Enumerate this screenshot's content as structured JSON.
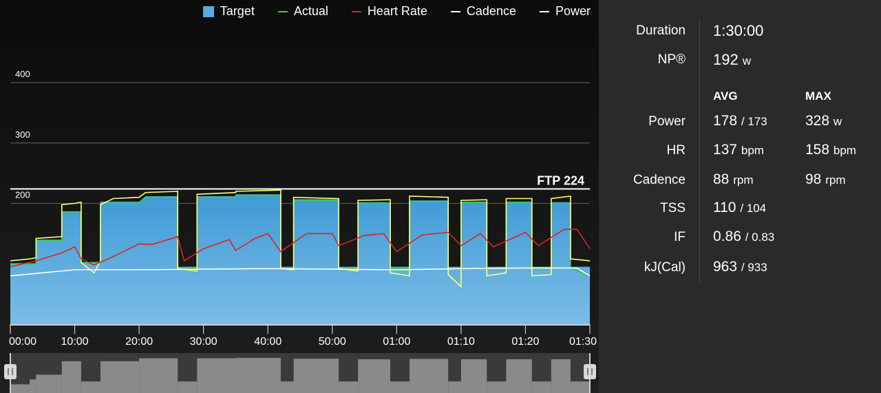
{
  "legend": [
    {
      "name": "Target",
      "color": "#5aa8dc",
      "kind": "box"
    },
    {
      "name": "Actual",
      "color": "#33cc55",
      "kind": "line"
    },
    {
      "name": "Heart Rate",
      "color": "#dd2222",
      "kind": "line"
    },
    {
      "name": "Cadence",
      "color": "#ffffff",
      "kind": "line"
    },
    {
      "name": "Power",
      "color": "#ffffff",
      "kind": "line"
    }
  ],
  "ftp_label": "FTP 224",
  "chart_data": {
    "type": "area",
    "y_ticks": [
      "400",
      "300",
      "200"
    ],
    "x_ticks": [
      "00:00",
      "10:00",
      "20:00",
      "30:00",
      "40:00",
      "50:00",
      "01:00",
      "01:10",
      "01:20",
      "01:30"
    ],
    "xlim_minutes": [
      0,
      90
    ],
    "ylim_watts": [
      0,
      400
    ],
    "ftp_watts": 224,
    "series": [
      {
        "name": "Target",
        "color": "#5aa8dc",
        "points": [
          [
            0,
            100
          ],
          [
            4,
            100
          ],
          [
            4,
            139
          ],
          [
            8,
            139
          ],
          [
            8,
            186
          ],
          [
            11,
            186
          ],
          [
            11,
            102
          ],
          [
            14,
            102
          ],
          [
            14,
            203
          ],
          [
            20,
            203
          ],
          [
            21,
            212
          ],
          [
            26,
            212
          ],
          [
            26,
            95
          ],
          [
            29,
            95
          ],
          [
            29,
            212
          ],
          [
            35,
            212
          ],
          [
            35,
            215
          ],
          [
            42,
            215
          ],
          [
            42,
            95
          ],
          [
            44,
            95
          ],
          [
            44,
            207
          ],
          [
            51,
            207
          ],
          [
            51,
            95
          ],
          [
            54,
            95
          ],
          [
            54,
            202
          ],
          [
            59,
            202
          ],
          [
            59,
            95
          ],
          [
            62,
            95
          ],
          [
            62,
            205
          ],
          [
            68,
            205
          ],
          [
            68,
            95
          ],
          [
            70,
            95
          ],
          [
            70,
            203
          ],
          [
            74,
            203
          ],
          [
            74,
            95
          ],
          [
            77,
            95
          ],
          [
            77,
            203
          ],
          [
            81,
            203
          ],
          [
            81,
            95
          ],
          [
            84,
            95
          ],
          [
            84,
            202
          ],
          [
            87,
            202
          ],
          [
            87,
            95
          ],
          [
            90,
            95
          ]
        ]
      },
      {
        "name": "Actual",
        "color": "#33cc55",
        "points": [
          [
            0,
            100
          ],
          [
            4,
            100
          ],
          [
            4,
            139
          ],
          [
            8,
            139
          ],
          [
            8,
            186
          ],
          [
            11,
            186
          ],
          [
            11,
            102
          ],
          [
            14,
            102
          ],
          [
            14,
            200
          ],
          [
            20,
            200
          ],
          [
            21,
            210
          ],
          [
            26,
            210
          ],
          [
            26,
            92
          ],
          [
            29,
            92
          ],
          [
            29,
            210
          ],
          [
            35,
            210
          ],
          [
            35,
            213
          ],
          [
            42,
            213
          ],
          [
            42,
            92
          ],
          [
            44,
            92
          ],
          [
            44,
            205
          ],
          [
            51,
            205
          ],
          [
            51,
            92
          ],
          [
            54,
            92
          ],
          [
            54,
            200
          ],
          [
            59,
            200
          ],
          [
            59,
            92
          ],
          [
            62,
            92
          ],
          [
            62,
            203
          ],
          [
            68,
            203
          ],
          [
            68,
            92
          ],
          [
            70,
            92
          ],
          [
            70,
            201
          ],
          [
            74,
            201
          ],
          [
            74,
            92
          ],
          [
            77,
            92
          ],
          [
            77,
            201
          ],
          [
            81,
            201
          ],
          [
            81,
            92
          ],
          [
            84,
            92
          ],
          [
            84,
            200
          ],
          [
            87,
            200
          ],
          [
            87,
            92
          ],
          [
            90,
            80
          ]
        ]
      },
      {
        "name": "Power",
        "color": "#ffff77",
        "points": [
          [
            0,
            105
          ],
          [
            3,
            108
          ],
          [
            4,
            110
          ],
          [
            4,
            142
          ],
          [
            8,
            145
          ],
          [
            8,
            198
          ],
          [
            10,
            200
          ],
          [
            11,
            202
          ],
          [
            11,
            102
          ],
          [
            13,
            85
          ],
          [
            14,
            105
          ],
          [
            14,
            198
          ],
          [
            16,
            208
          ],
          [
            20,
            210
          ],
          [
            21,
            218
          ],
          [
            26,
            220
          ],
          [
            26,
            92
          ],
          [
            29,
            88
          ],
          [
            29,
            215
          ],
          [
            35,
            218
          ],
          [
            35,
            220
          ],
          [
            42,
            222
          ],
          [
            42,
            92
          ],
          [
            44,
            90
          ],
          [
            44,
            210
          ],
          [
            51,
            208
          ],
          [
            51,
            92
          ],
          [
            54,
            88
          ],
          [
            54,
            205
          ],
          [
            59,
            206
          ],
          [
            59,
            85
          ],
          [
            62,
            80
          ],
          [
            62,
            212
          ],
          [
            68,
            210
          ],
          [
            68,
            82
          ],
          [
            70,
            62
          ],
          [
            70,
            205
          ],
          [
            74,
            206
          ],
          [
            74,
            80
          ],
          [
            77,
            85
          ],
          [
            77,
            208
          ],
          [
            81,
            208
          ],
          [
            81,
            80
          ],
          [
            84,
            82
          ],
          [
            84,
            208
          ],
          [
            87,
            212
          ],
          [
            87,
            108
          ],
          [
            90,
            105
          ]
        ]
      },
      {
        "name": "Heart Rate",
        "color": "#dd2222",
        "points": [
          [
            0,
            95
          ],
          [
            4,
            105
          ],
          [
            8,
            118
          ],
          [
            10,
            128
          ],
          [
            11,
            108
          ],
          [
            13,
            98
          ],
          [
            16,
            112
          ],
          [
            20,
            133
          ],
          [
            22,
            132
          ],
          [
            26,
            145
          ],
          [
            27,
            105
          ],
          [
            30,
            125
          ],
          [
            34,
            140
          ],
          [
            35,
            122
          ],
          [
            38,
            142
          ],
          [
            40,
            150
          ],
          [
            42,
            120
          ],
          [
            46,
            150
          ],
          [
            50,
            150
          ],
          [
            51,
            130
          ],
          [
            55,
            147
          ],
          [
            58,
            150
          ],
          [
            60,
            120
          ],
          [
            64,
            148
          ],
          [
            68,
            152
          ],
          [
            70,
            130
          ],
          [
            73,
            150
          ],
          [
            75,
            128
          ],
          [
            80,
            152
          ],
          [
            82,
            130
          ],
          [
            86,
            157
          ],
          [
            88,
            157
          ],
          [
            90,
            125
          ]
        ]
      },
      {
        "name": "Cadence",
        "color": "#ffffff",
        "points": [
          [
            0,
            80
          ],
          [
            10,
            90
          ],
          [
            20,
            90
          ],
          [
            30,
            91
          ],
          [
            40,
            92
          ],
          [
            50,
            91
          ],
          [
            60,
            90
          ],
          [
            70,
            92
          ],
          [
            80,
            93
          ],
          [
            88,
            93
          ],
          [
            90,
            80
          ]
        ]
      }
    ]
  },
  "overview": {
    "segments": [
      [
        0,
        3,
        45
      ],
      [
        3,
        4,
        70
      ],
      [
        4,
        8,
        95
      ],
      [
        8,
        11,
        165
      ],
      [
        11,
        14,
        60
      ],
      [
        14,
        20,
        165
      ],
      [
        20,
        26,
        180
      ],
      [
        26,
        29,
        60
      ],
      [
        29,
        35,
        180
      ],
      [
        35,
        42,
        182
      ],
      [
        42,
        44,
        60
      ],
      [
        44,
        51,
        178
      ],
      [
        51,
        54,
        60
      ],
      [
        54,
        59,
        175
      ],
      [
        59,
        62,
        60
      ],
      [
        62,
        68,
        177
      ],
      [
        68,
        70,
        60
      ],
      [
        70,
        74,
        175
      ],
      [
        74,
        77,
        60
      ],
      [
        77,
        81,
        175
      ],
      [
        81,
        84,
        60
      ],
      [
        84,
        87,
        175
      ],
      [
        87,
        90,
        60
      ]
    ]
  },
  "stats": {
    "duration_label": "Duration",
    "duration_value": "1:30:00",
    "np_label": "NP®",
    "np_value": "192",
    "np_unit": "w",
    "avg_head": "AVG",
    "max_head": "MAX",
    "rows": [
      {
        "label": "Power",
        "avg": "178",
        "avg_sep": "/ 173",
        "max": "328",
        "max_unit": "w"
      },
      {
        "label": "HR",
        "avg": "137",
        "avg_sep": "bpm",
        "max": "158",
        "max_unit": "bpm"
      },
      {
        "label": "Cadence",
        "avg": "88",
        "avg_sep": "rpm",
        "max": "98",
        "max_unit": "rpm"
      },
      {
        "label": "TSS",
        "avg": "110",
        "avg_sep": "/ 104",
        "max": "",
        "max_unit": ""
      },
      {
        "label": "IF",
        "avg": "0.86",
        "avg_sep": "/ 0.83",
        "max": "",
        "max_unit": ""
      },
      {
        "label": "kJ(Cal)",
        "avg": "963",
        "avg_sep": "/ 933",
        "max": "",
        "max_unit": ""
      }
    ]
  }
}
